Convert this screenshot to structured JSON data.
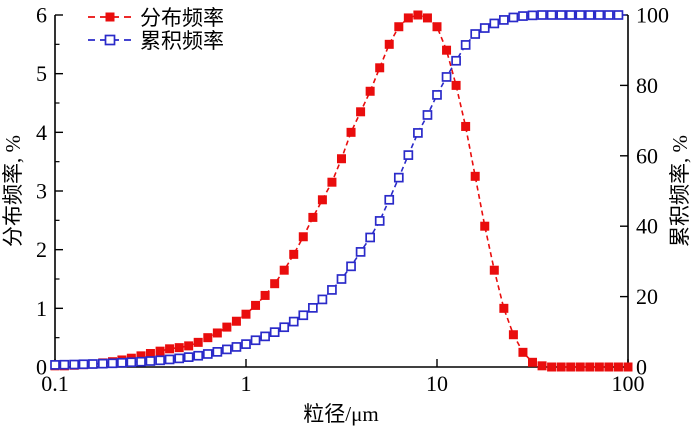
{
  "figure": {
    "background": "#ffffff",
    "axis_color": "#000000"
  },
  "axes": {
    "x": {
      "title": "粒径/μm",
      "scale": "log",
      "min": 0.1,
      "max": 100,
      "tick_values": [
        0.1,
        1,
        10,
        100
      ],
      "tick_labels": [
        "0.1",
        "1",
        "10",
        "100"
      ]
    },
    "y_left": {
      "title": "分布频率, %",
      "min": 0,
      "max": 6,
      "tick_values": [
        0,
        1,
        2,
        3,
        4,
        5,
        6
      ],
      "tick_labels": [
        "0",
        "1",
        "2",
        "3",
        "4",
        "5",
        "6"
      ],
      "minor_tick_step": 0.5
    },
    "y_right": {
      "title": "累积频率, %",
      "min": 0,
      "max": 100,
      "tick_values": [
        0,
        20,
        40,
        60,
        80,
        100
      ],
      "tick_labels": [
        "0",
        "20",
        "40",
        "60",
        "80",
        "100"
      ]
    }
  },
  "chart_data": {
    "type": "line",
    "x_scale": "log",
    "xlabel": "粒径/μm",
    "ylabel_left": "分布频率, %",
    "ylabel_right": "累积频率, %",
    "xlim": [
      0.1,
      100
    ],
    "ylim_left": [
      0,
      6
    ],
    "ylim_right": [
      0,
      100
    ],
    "grid": false,
    "legend_position": "top-left",
    "x": [
      0.1,
      0.112,
      0.126,
      0.141,
      0.158,
      0.178,
      0.2,
      0.224,
      0.251,
      0.282,
      0.316,
      0.355,
      0.398,
      0.447,
      0.501,
      0.562,
      0.631,
      0.708,
      0.794,
      0.891,
      1.0,
      1.122,
      1.259,
      1.413,
      1.585,
      1.778,
      1.995,
      2.239,
      2.512,
      2.818,
      3.162,
      3.548,
      3.981,
      4.467,
      5.012,
      5.623,
      6.31,
      7.079,
      7.943,
      8.913,
      10.0,
      11.22,
      12.589,
      14.125,
      15.849,
      17.783,
      19.953,
      22.387,
      25.119,
      28.184,
      31.623,
      35.481,
      39.811,
      44.668,
      50.119,
      56.234,
      63.096,
      70.795,
      79.433,
      89.125,
      100.0
    ],
    "series": [
      {
        "name": "分布频率",
        "axis": "left",
        "color": "#e90d0d",
        "marker": "filled-square",
        "line_style": "dashed",
        "draw_last_marker": true,
        "values": [
          0.02,
          0.02,
          0.03,
          0.04,
          0.05,
          0.07,
          0.09,
          0.12,
          0.15,
          0.19,
          0.23,
          0.27,
          0.31,
          0.33,
          0.36,
          0.42,
          0.5,
          0.58,
          0.68,
          0.78,
          0.9,
          1.05,
          1.22,
          1.42,
          1.65,
          1.92,
          2.22,
          2.55,
          2.85,
          3.15,
          3.55,
          4.0,
          4.35,
          4.7,
          5.1,
          5.5,
          5.8,
          5.95,
          6.0,
          5.95,
          5.8,
          5.4,
          4.8,
          4.1,
          3.25,
          2.4,
          1.65,
          1.0,
          0.55,
          0.25,
          0.08,
          0.02,
          0.0,
          0.0,
          0.0,
          0.0,
          0.0,
          0.0,
          0.0,
          0.0,
          0.0
        ]
      },
      {
        "name": "累积频率",
        "axis": "right",
        "color": "#2a2ac9",
        "marker": "open-square",
        "line_style": "dashed",
        "draw_last_marker": false,
        "values": [
          0.6,
          0.65,
          0.7,
          0.78,
          0.85,
          0.95,
          1.05,
          1.2,
          1.35,
          1.5,
          1.7,
          1.9,
          2.15,
          2.45,
          2.8,
          3.2,
          3.7,
          4.3,
          5.0,
          5.7,
          6.5,
          7.6,
          8.7,
          9.9,
          11.3,
          12.9,
          14.7,
          16.8,
          19.2,
          21.9,
          25.0,
          28.6,
          32.7,
          36.8,
          41.5,
          47.5,
          53.8,
          60.2,
          66.5,
          71.6,
          77.3,
          82.4,
          87.0,
          91.5,
          94.6,
          96.3,
          97.6,
          98.6,
          99.3,
          99.7,
          99.9,
          100,
          100,
          100,
          100,
          100,
          100,
          100,
          100,
          100,
          100
        ]
      }
    ]
  }
}
